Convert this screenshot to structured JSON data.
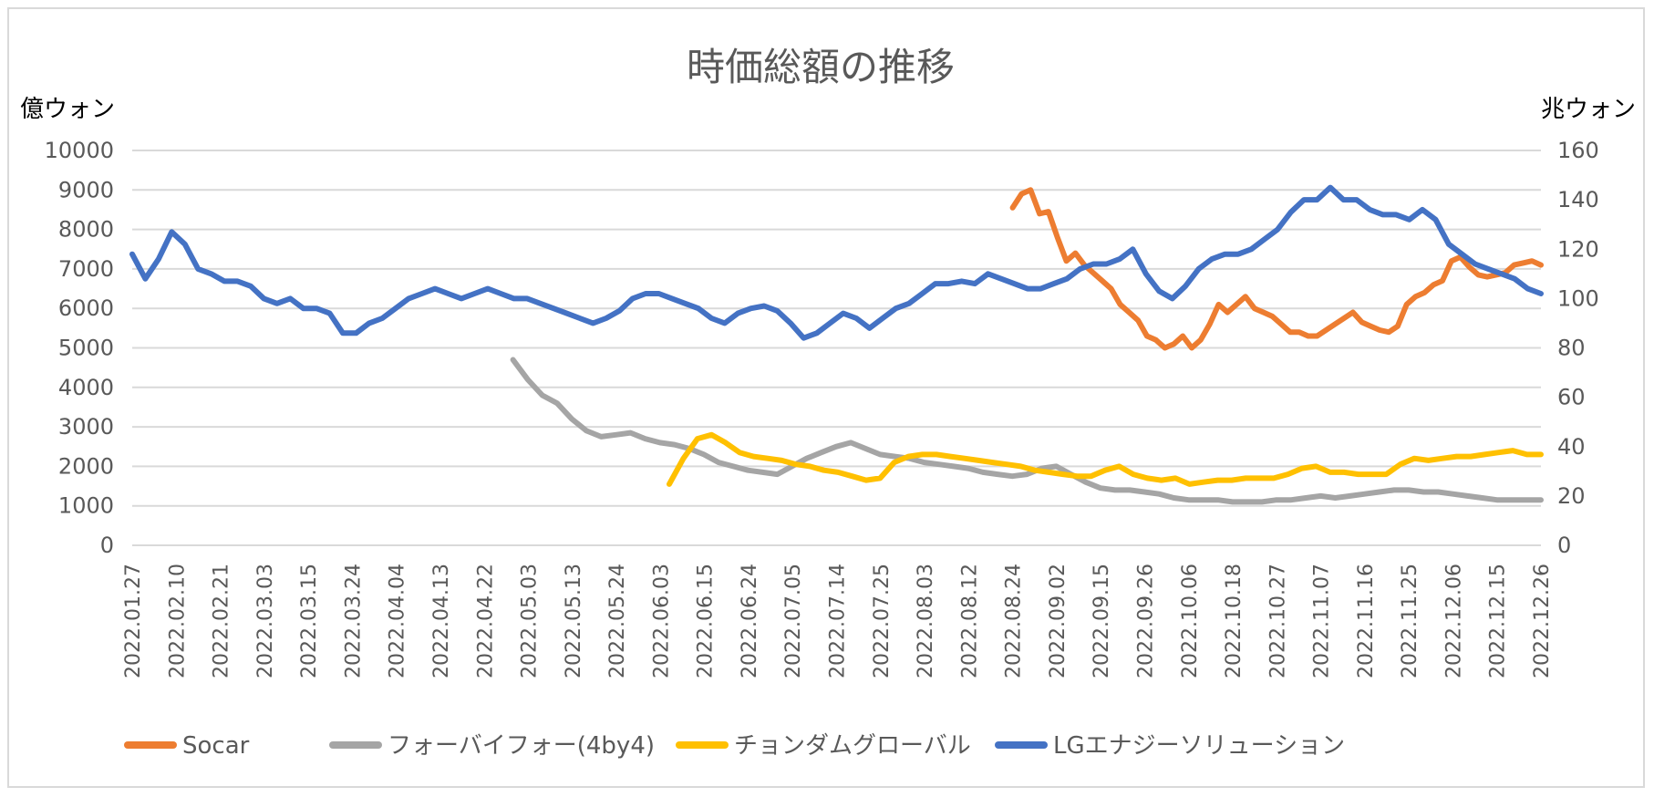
{
  "chart_data": {
    "type": "line",
    "title": "時価総額の推移",
    "y_left_label": "億ウォン",
    "y_right_label": "兆ウォン",
    "y_left_ticks": [
      "10000",
      "9000",
      "8000",
      "7000",
      "6000",
      "5000",
      "4000",
      "3000",
      "2000",
      "1000",
      "0"
    ],
    "y_right_ticks": [
      "160",
      "140",
      "120",
      "100",
      "80",
      "60",
      "40",
      "20",
      "0"
    ],
    "ylim_left": [
      0,
      10000
    ],
    "ylim_right": [
      0,
      160
    ],
    "grid": true,
    "legend_position": "bottom",
    "x_labels": [
      "2022.01.27",
      "2022.02.10",
      "2022.02.21",
      "2022.03.03",
      "2022.03.15",
      "2022.03.24",
      "2022.04.04",
      "2022.04.13",
      "2022.04.22",
      "2022.05.03",
      "2022.05.13",
      "2022.05.24",
      "2022.06.03",
      "2022.06.15",
      "2022.06.24",
      "2022.07.05",
      "2022.07.14",
      "2022.07.25",
      "2022.08.03",
      "2022.08.12",
      "2022.08.24",
      "2022.09.02",
      "2022.09.15",
      "2022.09.26",
      "2022.10.06",
      "2022.10.18",
      "2022.10.27",
      "2022.11.07",
      "2022.11.16",
      "2022.11.25",
      "2022.12.06",
      "2022.12.15",
      "2022.12.26"
    ],
    "series": [
      {
        "name": "Socar",
        "color": "#ED7D31",
        "axis": "left",
        "start_index": 20,
        "values": [
          8550,
          8900,
          9000,
          8400,
          8450,
          7800,
          7200,
          7400,
          7100,
          6900,
          6700,
          6500,
          6100,
          5900,
          5700,
          5300,
          5200,
          5000,
          5100,
          5300,
          5000,
          5200,
          5600,
          6100,
          5900,
          6100,
          6300,
          6000,
          5900,
          5800,
          5600,
          5400,
          5400,
          5300,
          5300,
          5450,
          5600,
          5750,
          5900,
          5650,
          5550,
          5450,
          5400,
          5550,
          6100,
          6300,
          6400,
          6600,
          6700,
          7200,
          7300,
          7050,
          6850,
          6800,
          6850,
          6900,
          7100,
          7150,
          7200,
          7100
        ]
      },
      {
        "name": "フォーバイフォー(4by4)",
        "color": "#A5A5A5",
        "axis": "left",
        "start_index": 8.65,
        "values": [
          4700,
          4200,
          3800,
          3600,
          3200,
          2900,
          2750,
          2800,
          2850,
          2700,
          2600,
          2550,
          2450,
          2300,
          2100,
          2000,
          1900,
          1850,
          1800,
          2000,
          2200,
          2350,
          2500,
          2600,
          2450,
          2300,
          2250,
          2200,
          2100,
          2050,
          2000,
          1950,
          1850,
          1800,
          1750,
          1800,
          1950,
          2000,
          1800,
          1600,
          1450,
          1400,
          1400,
          1350,
          1300,
          1200,
          1150,
          1150,
          1150,
          1100,
          1100,
          1100,
          1150,
          1150,
          1200,
          1250,
          1200,
          1250,
          1300,
          1350,
          1400,
          1400,
          1350,
          1350,
          1300,
          1250,
          1200,
          1150,
          1150,
          1150,
          1150
        ]
      },
      {
        "name": "チョンダムグローバル",
        "color": "#FFC000",
        "axis": "left",
        "start_index": 12.2,
        "values": [
          1550,
          2200,
          2700,
          2800,
          2600,
          2350,
          2250,
          2200,
          2150,
          2050,
          2000,
          1900,
          1850,
          1750,
          1650,
          1700,
          2100,
          2250,
          2300,
          2300,
          2250,
          2200,
          2150,
          2100,
          2050,
          2000,
          1900,
          1850,
          1800,
          1750,
          1750,
          1900,
          2000,
          1800,
          1700,
          1650,
          1700,
          1550,
          1600,
          1650,
          1650,
          1700,
          1700,
          1700,
          1800,
          1950,
          2000,
          1850,
          1850,
          1800,
          1800,
          1800,
          2050,
          2200,
          2150,
          2200,
          2250,
          2250,
          2300,
          2350,
          2400,
          2300,
          2300
        ]
      },
      {
        "name": "LGエナジーソリューション",
        "color": "#4472C4",
        "axis": "right",
        "start_index": 0,
        "values": [
          118,
          108,
          116,
          127,
          122,
          112,
          110,
          107,
          107,
          105,
          100,
          98,
          100,
          96,
          96,
          94,
          86,
          86,
          90,
          92,
          96,
          100,
          102,
          104,
          102,
          100,
          102,
          104,
          102,
          100,
          100,
          98,
          96,
          94,
          92,
          90,
          92,
          95,
          100,
          102,
          102,
          100,
          98,
          96,
          92,
          90,
          94,
          96,
          97,
          95,
          90,
          84,
          86,
          90,
          94,
          92,
          88,
          92,
          96,
          98,
          102,
          106,
          106,
          107,
          106,
          110,
          108,
          106,
          104,
          104,
          106,
          108,
          112,
          114,
          114,
          116,
          120,
          110,
          103,
          100,
          105,
          112,
          116,
          118,
          118,
          120,
          124,
          128,
          135,
          140,
          140,
          145,
          140,
          140,
          136,
          134,
          134,
          132,
          136,
          132,
          122,
          118,
          114,
          112,
          110,
          108,
          104,
          102
        ]
      }
    ]
  }
}
